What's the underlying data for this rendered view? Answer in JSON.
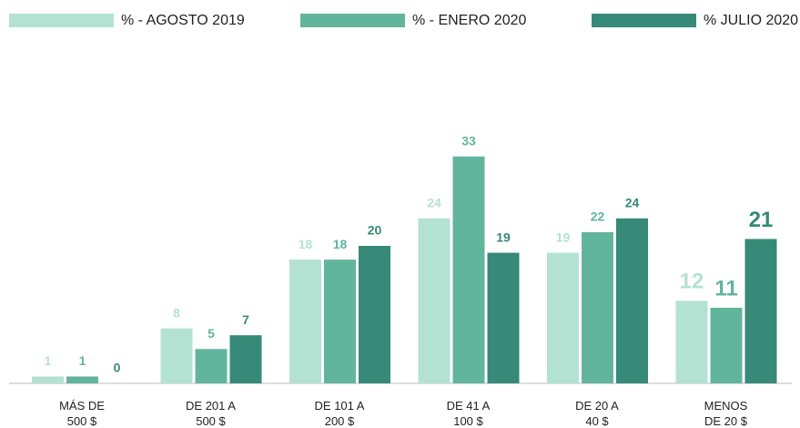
{
  "chart_data": {
    "type": "bar",
    "categories": [
      "MÁS DE\n500 $",
      "DE 201 A\n500 $",
      "DE 101 A\n200 $",
      "DE 41 A\n100 $",
      "DE 20 A\n40 $",
      "MENOS\nDE 20 $"
    ],
    "series": [
      {
        "name": "% - AGOSTO 2019",
        "color": "#b3e2d3",
        "values": [
          1,
          8,
          18,
          24,
          19,
          12
        ]
      },
      {
        "name": "% - ENERO 2020",
        "color": "#62b59d",
        "values": [
          1,
          5,
          18,
          33,
          22,
          11
        ]
      },
      {
        "name": "% JULIO 2020",
        "color": "#368a77",
        "values": [
          0,
          7,
          20,
          19,
          24,
          21
        ]
      }
    ],
    "ylim": [
      0,
      40
    ],
    "legend": "top"
  }
}
